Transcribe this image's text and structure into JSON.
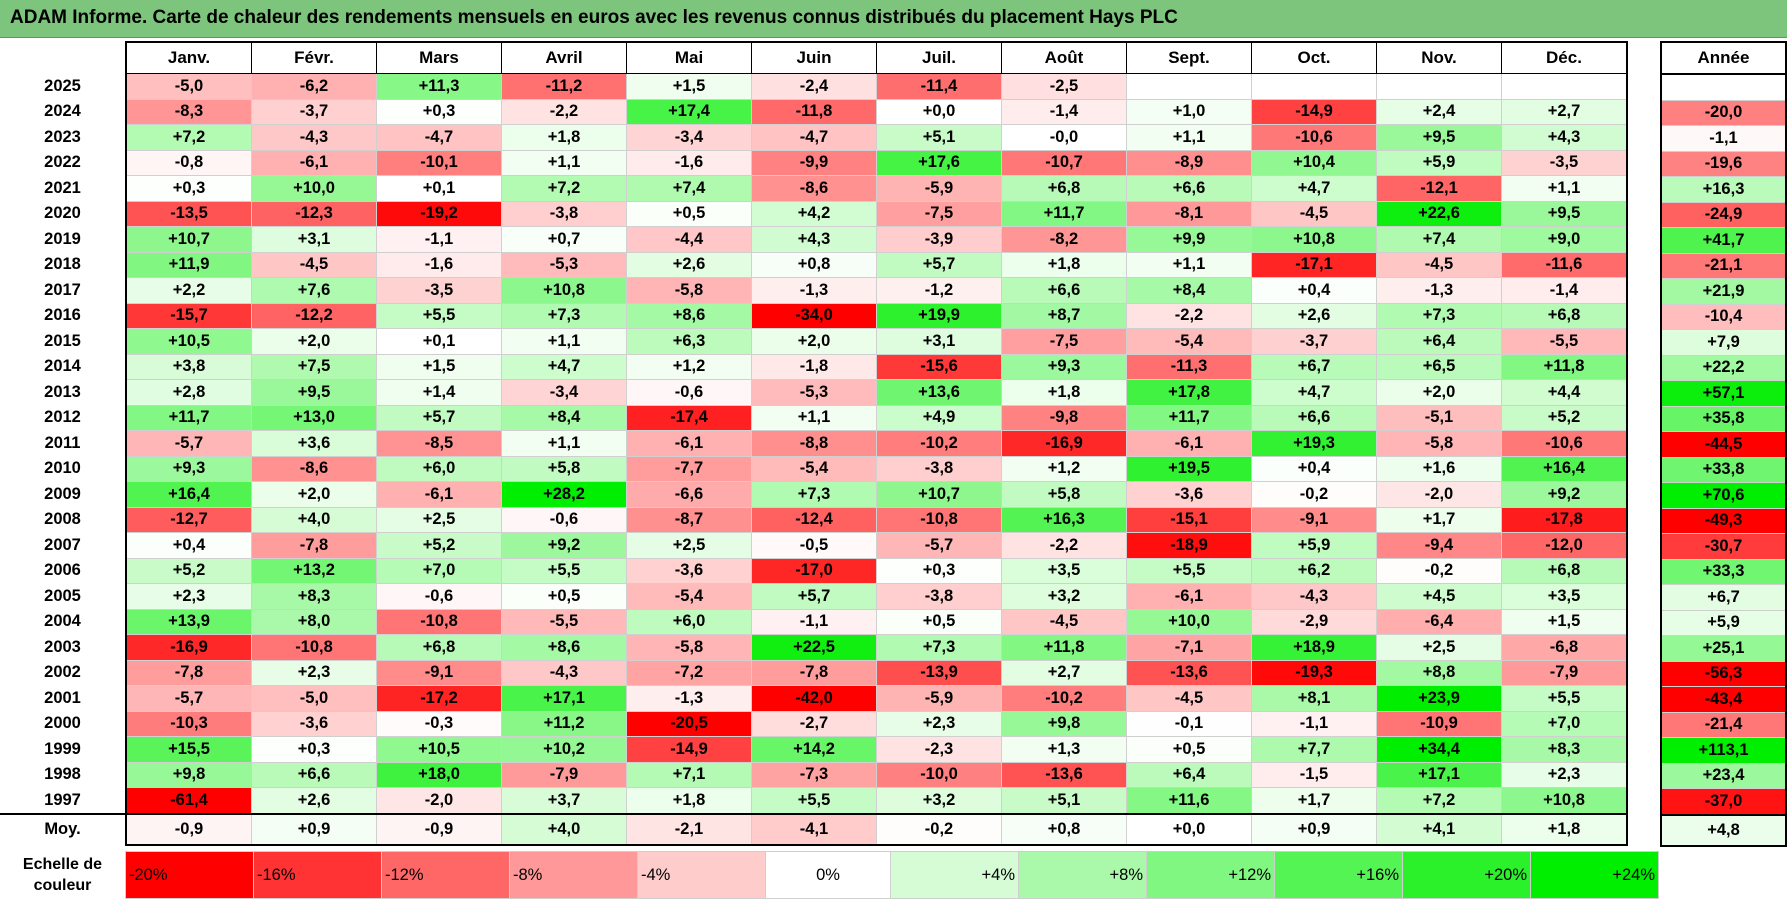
{
  "title": "ADAM Informe. Carte de chaleur des rendements mensuels en euros avec les revenus connus distribués du placement Hays PLC",
  "colors": {
    "red": "#ff0000",
    "white": "#ffffff",
    "green": "#00ee00",
    "title_bg": "#7dc47d"
  },
  "chart_data": {
    "type": "heatmap",
    "title": "ADAM Informe. Carte de chaleur des rendements mensuels en euros avec les revenus connus distribués du placement Hays PLC",
    "columns": [
      "Janv.",
      "Févr.",
      "Mars",
      "Avril",
      "Mai",
      "Juin",
      "Juil.",
      "Août",
      "Sept.",
      "Oct.",
      "Nov.",
      "Déc."
    ],
    "annual_header": "Année",
    "rows": [
      {
        "year": "2025",
        "months": [
          "-5,0",
          "-6,2",
          "+11,3",
          "-11,2",
          "+1,5",
          "-2,4",
          "-11,4",
          "-2,5",
          "",
          "",
          "",
          ""
        ],
        "annual": ""
      },
      {
        "year": "2024",
        "months": [
          "-8,3",
          "-3,7",
          "+0,3",
          "-2,2",
          "+17,4",
          "-11,8",
          "+0,0",
          "-1,4",
          "+1,0",
          "-14,9",
          "+2,4",
          "+2,7"
        ],
        "annual": "-20,0"
      },
      {
        "year": "2023",
        "months": [
          "+7,2",
          "-4,3",
          "-4,7",
          "+1,8",
          "-3,4",
          "-4,7",
          "+5,1",
          "-0,0",
          "+1,1",
          "-10,6",
          "+9,5",
          "+4,3"
        ],
        "annual": "-1,1"
      },
      {
        "year": "2022",
        "months": [
          "-0,8",
          "-6,1",
          "-10,1",
          "+1,1",
          "-1,6",
          "-9,9",
          "+17,6",
          "-10,7",
          "-8,9",
          "+10,4",
          "+5,9",
          "-3,5"
        ],
        "annual": "-19,6"
      },
      {
        "year": "2021",
        "months": [
          "+0,3",
          "+10,0",
          "+0,1",
          "+7,2",
          "+7,4",
          "-8,6",
          "-5,9",
          "+6,8",
          "+6,6",
          "+4,7",
          "-12,1",
          "+1,1"
        ],
        "annual": "+16,3"
      },
      {
        "year": "2020",
        "months": [
          "-13,5",
          "-12,3",
          "-19,2",
          "-3,8",
          "+0,5",
          "+4,2",
          "-7,5",
          "+11,7",
          "-8,1",
          "-4,5",
          "+22,6",
          "+9,5"
        ],
        "annual": "-24,9"
      },
      {
        "year": "2019",
        "months": [
          "+10,7",
          "+3,1",
          "-1,1",
          "+0,7",
          "-4,4",
          "+4,3",
          "-3,9",
          "-8,2",
          "+9,9",
          "+10,8",
          "+7,4",
          "+9,0"
        ],
        "annual": "+41,7"
      },
      {
        "year": "2018",
        "months": [
          "+11,9",
          "-4,5",
          "-1,6",
          "-5,3",
          "+2,6",
          "+0,8",
          "+5,7",
          "+1,8",
          "+1,1",
          "-17,1",
          "-4,5",
          "-11,6"
        ],
        "annual": "-21,1"
      },
      {
        "year": "2017",
        "months": [
          "+2,2",
          "+7,6",
          "-3,5",
          "+10,8",
          "-5,8",
          "-1,3",
          "-1,2",
          "+6,6",
          "+8,4",
          "+0,4",
          "-1,3",
          "-1,4"
        ],
        "annual": "+21,9"
      },
      {
        "year": "2016",
        "months": [
          "-15,7",
          "-12,2",
          "+5,5",
          "+7,3",
          "+8,6",
          "-34,0",
          "+19,9",
          "+8,7",
          "-2,2",
          "+2,6",
          "+7,3",
          "+6,8"
        ],
        "annual": "-10,4"
      },
      {
        "year": "2015",
        "months": [
          "+10,5",
          "+2,0",
          "+0,1",
          "+1,1",
          "+6,3",
          "+2,0",
          "+3,1",
          "-7,5",
          "-5,4",
          "-3,7",
          "+6,4",
          "-5,5"
        ],
        "annual": "+7,9"
      },
      {
        "year": "2014",
        "months": [
          "+3,8",
          "+7,5",
          "+1,5",
          "+4,7",
          "+1,2",
          "-1,8",
          "-15,6",
          "+9,3",
          "-11,3",
          "+6,7",
          "+6,5",
          "+11,8"
        ],
        "annual": "+22,2"
      },
      {
        "year": "2013",
        "months": [
          "+2,8",
          "+9,5",
          "+1,4",
          "-3,4",
          "-0,6",
          "-5,3",
          "+13,6",
          "+1,8",
          "+17,8",
          "+4,7",
          "+2,0",
          "+4,4"
        ],
        "annual": "+57,1"
      },
      {
        "year": "2012",
        "months": [
          "+11,7",
          "+13,0",
          "+5,7",
          "+8,4",
          "-17,4",
          "+1,1",
          "+4,9",
          "-9,8",
          "+11,7",
          "+6,6",
          "-5,1",
          "+5,2"
        ],
        "annual": "+35,8"
      },
      {
        "year": "2011",
        "months": [
          "-5,7",
          "+3,6",
          "-8,5",
          "+1,1",
          "-6,1",
          "-8,8",
          "-10,2",
          "-16,9",
          "-6,1",
          "+19,3",
          "-5,8",
          "-10,6"
        ],
        "annual": "-44,5"
      },
      {
        "year": "2010",
        "months": [
          "+9,3",
          "-8,6",
          "+6,0",
          "+5,8",
          "-7,7",
          "-5,4",
          "-3,8",
          "+1,2",
          "+19,5",
          "+0,4",
          "+1,6",
          "+16,4"
        ],
        "annual": "+33,8"
      },
      {
        "year": "2009",
        "months": [
          "+16,4",
          "+2,0",
          "-6,1",
          "+28,2",
          "-6,6",
          "+7,3",
          "+10,7",
          "+5,8",
          "-3,6",
          "-0,2",
          "-2,0",
          "+9,2"
        ],
        "annual": "+70,6"
      },
      {
        "year": "2008",
        "months": [
          "-12,7",
          "+4,0",
          "+2,5",
          "-0,6",
          "-8,7",
          "-12,4",
          "-10,8",
          "+16,3",
          "-15,1",
          "-9,1",
          "+1,7",
          "-17,8"
        ],
        "annual": "-49,3"
      },
      {
        "year": "2007",
        "months": [
          "+0,4",
          "-7,8",
          "+5,2",
          "+9,2",
          "+2,5",
          "-0,5",
          "-5,7",
          "-2,2",
          "-18,9",
          "+5,9",
          "-9,4",
          "-12,0"
        ],
        "annual": "-30,7"
      },
      {
        "year": "2006",
        "months": [
          "+5,2",
          "+13,2",
          "+7,0",
          "+5,5",
          "-3,6",
          "-17,0",
          "+0,3",
          "+3,5",
          "+5,5",
          "+6,2",
          "-0,2",
          "+6,8"
        ],
        "annual": "+33,3"
      },
      {
        "year": "2005",
        "months": [
          "+2,3",
          "+8,3",
          "-0,6",
          "+0,5",
          "-5,4",
          "+5,7",
          "-3,8",
          "+3,2",
          "-6,1",
          "-4,3",
          "+4,5",
          "+3,5"
        ],
        "annual": "+6,7"
      },
      {
        "year": "2004",
        "months": [
          "+13,9",
          "+8,0",
          "-10,8",
          "-5,5",
          "+6,0",
          "-1,1",
          "+0,5",
          "-4,5",
          "+10,0",
          "-2,9",
          "-6,4",
          "+1,5"
        ],
        "annual": "+5,9"
      },
      {
        "year": "2003",
        "months": [
          "-16,9",
          "-10,8",
          "+6,8",
          "+8,6",
          "-5,8",
          "+22,5",
          "+7,3",
          "+11,8",
          "-7,1",
          "+18,9",
          "+2,5",
          "-6,8"
        ],
        "annual": "+25,1"
      },
      {
        "year": "2002",
        "months": [
          "-7,8",
          "+2,3",
          "-9,1",
          "-4,3",
          "-7,2",
          "-7,8",
          "-13,9",
          "+2,7",
          "-13,6",
          "-19,3",
          "+8,8",
          "-7,9"
        ],
        "annual": "-56,3"
      },
      {
        "year": "2001",
        "months": [
          "-5,7",
          "-5,0",
          "-17,2",
          "+17,1",
          "-1,3",
          "-42,0",
          "-5,9",
          "-10,2",
          "-4,5",
          "+8,1",
          "+23,9",
          "+5,5"
        ],
        "annual": "-43,4"
      },
      {
        "year": "2000",
        "months": [
          "-10,3",
          "-3,6",
          "-0,3",
          "+11,2",
          "-20,5",
          "-2,7",
          "+2,3",
          "+9,8",
          "-0,1",
          "-1,1",
          "-10,9",
          "+7,0"
        ],
        "annual": "-21,4"
      },
      {
        "year": "1999",
        "months": [
          "+15,5",
          "+0,3",
          "+10,5",
          "+10,2",
          "-14,9",
          "+14,2",
          "-2,3",
          "+1,3",
          "+0,5",
          "+7,7",
          "+34,4",
          "+8,3"
        ],
        "annual": "+113,1"
      },
      {
        "year": "1998",
        "months": [
          "+9,8",
          "+6,6",
          "+18,0",
          "-7,9",
          "+7,1",
          "-7,3",
          "-10,0",
          "-13,6",
          "+6,4",
          "-1,5",
          "+17,1",
          "+2,3"
        ],
        "annual": "+23,4"
      },
      {
        "year": "1997",
        "months": [
          "-61,4",
          "+2,6",
          "-2,0",
          "+3,7",
          "+1,8",
          "+5,5",
          "+3,2",
          "+5,1",
          "+11,6",
          "+1,7",
          "+7,2",
          "+10,8"
        ],
        "annual": "-37,0"
      }
    ],
    "average": {
      "label": "Moy.",
      "months": [
        "-0,9",
        "+0,9",
        "-0,9",
        "+4,0",
        "-2,1",
        "-4,1",
        "-0,2",
        "+0,8",
        "+0,0",
        "+0,9",
        "+4,1",
        "+1,8"
      ],
      "annual": "+4,8"
    },
    "scale": {
      "label": "Echelle de couleur",
      "stops": [
        "-20%",
        "-16%",
        "-12%",
        "-8%",
        "-4%",
        "0%",
        "+4%",
        "+8%",
        "+12%",
        "+16%",
        "+20%",
        "+24%"
      ],
      "values": [
        -20,
        -16,
        -12,
        -8,
        -4,
        0,
        4,
        8,
        12,
        16,
        20,
        24
      ]
    }
  }
}
